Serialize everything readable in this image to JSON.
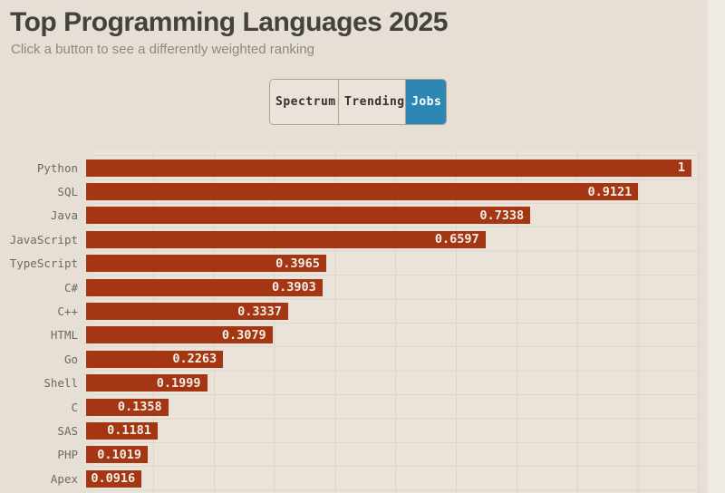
{
  "header": {
    "title": "Top Programming Languages 2025",
    "subtitle": "Click a button to see a differently weighted ranking"
  },
  "toolbar": {
    "buttons": [
      {
        "label": "Spectrum",
        "active": false
      },
      {
        "label": "Trending",
        "active": false
      },
      {
        "label": "Jobs",
        "active": true
      }
    ]
  },
  "colors": {
    "bar": "#a43613",
    "active_button_bg": "#2e87b2",
    "page_bg": "#e5dfd5",
    "plot_bg": "#e9e3d9"
  },
  "chart_data": {
    "type": "bar",
    "orientation": "horizontal",
    "title": "Top Programming Languages 2025",
    "weighting_selected": "Jobs",
    "categories": [
      "Python",
      "SQL",
      "Java",
      "JavaScript",
      "TypeScript",
      "C#",
      "C++",
      "HTML",
      "Go",
      "Shell",
      "C",
      "SAS",
      "PHP",
      "Apex"
    ],
    "values": [
      1,
      0.9121,
      0.7338,
      0.6597,
      0.3965,
      0.3903,
      0.3337,
      0.3079,
      0.2263,
      0.1999,
      0.1358,
      0.1181,
      0.1019,
      0.0916
    ],
    "value_labels": [
      "1",
      "0.9121",
      "0.7338",
      "0.6597",
      "0.3965",
      "0.3903",
      "0.3337",
      "0.3079",
      "0.2263",
      "0.1999",
      "0.1358",
      "0.1181",
      "0.1019",
      "0.0916"
    ],
    "xlim": [
      0,
      1
    ],
    "grid": true,
    "gridline_step": 0.1,
    "legend": false
  }
}
